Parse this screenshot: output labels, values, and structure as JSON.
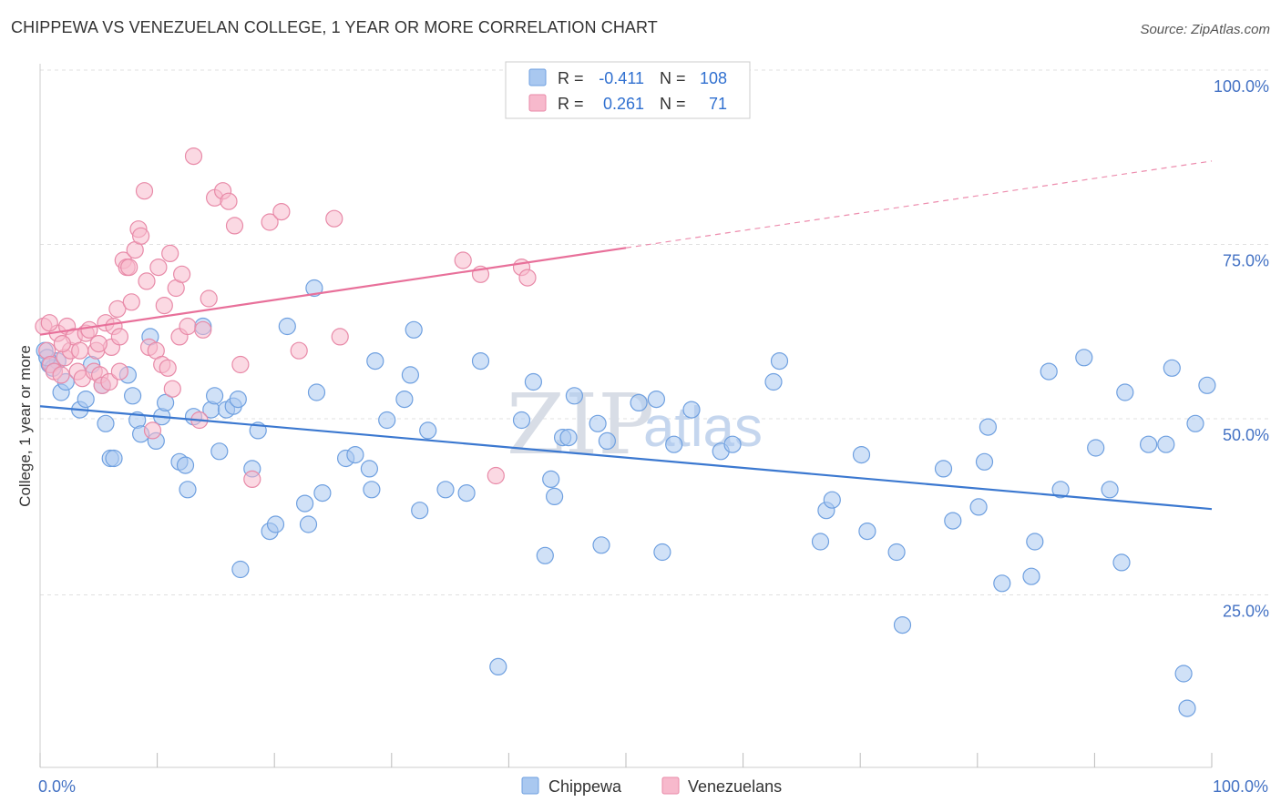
{
  "title": "CHIPPEWA VS VENEZUELAN COLLEGE, 1 YEAR OR MORE CORRELATION CHART",
  "source": "Source: ZipAtlas.com",
  "watermark": {
    "zip": "ZIP",
    "atlas": "atlas"
  },
  "legend": {
    "rows": [
      {
        "r_label": "R =",
        "r_value": "-0.411",
        "n_label": "N =",
        "n_value": "108",
        "color": "#a9c8f0"
      },
      {
        "r_label": "R =",
        "r_value": "0.261",
        "n_label": "N =",
        "n_value": "71",
        "color": "#f7b9cc"
      }
    ]
  },
  "bottom_legend": [
    {
      "label": "Chippewa",
      "color": "#a9c8f0"
    },
    {
      "label": "Venezuelans",
      "color": "#f7b9cc"
    }
  ],
  "chart_data": {
    "type": "scatter",
    "title": "CHIPPEWA VS VENEZUELAN COLLEGE, 1 YEAR OR MORE CORRELATION CHART",
    "xlabel": "",
    "ylabel": "College, 1 year or more",
    "xlim": [
      0,
      100
    ],
    "ylim": [
      0,
      105
    ],
    "x_ticks": [
      "0.0%",
      "100.0%"
    ],
    "y_ticks": [
      {
        "value": 25,
        "label": "25.0%"
      },
      {
        "value": 50,
        "label": "50.0%"
      },
      {
        "value": 75,
        "label": "75.0%"
      },
      {
        "value": 100,
        "label": "100.0%"
      }
    ],
    "grid": true,
    "legend_placement": "top-center",
    "series": [
      {
        "name": "Chippewa",
        "color": "#6fa0e0",
        "fill": "#a9c8f0",
        "trend": {
          "x0": 0,
          "y0": 52,
          "x1": 100,
          "y1": 37.2,
          "dashed_from": null
        },
        "points": [
          [
            0.4,
            60
          ],
          [
            0.8,
            58
          ],
          [
            1.5,
            58.5
          ],
          [
            1.8,
            54
          ],
          [
            2.2,
            55.5
          ],
          [
            3.4,
            51.5
          ],
          [
            3.9,
            53
          ],
          [
            4.4,
            58
          ],
          [
            5.3,
            55
          ],
          [
            5.6,
            49.5
          ],
          [
            6,
            44.5
          ],
          [
            6.3,
            44.5
          ],
          [
            7.5,
            56.5
          ],
          [
            7.9,
            53.5
          ],
          [
            8.3,
            50
          ],
          [
            8.6,
            48
          ],
          [
            9.4,
            62
          ],
          [
            9.9,
            47
          ],
          [
            10.4,
            50.5
          ],
          [
            10.7,
            52.5
          ],
          [
            11.9,
            44
          ],
          [
            12.4,
            43.5
          ],
          [
            12.6,
            40
          ],
          [
            13.1,
            50.5
          ],
          [
            13.9,
            63.5
          ],
          [
            14.6,
            51.5
          ],
          [
            14.9,
            53.5
          ],
          [
            15.3,
            45.5
          ],
          [
            15.9,
            51.5
          ],
          [
            16.5,
            52
          ],
          [
            16.9,
            53
          ],
          [
            17.1,
            28.5
          ],
          [
            18.1,
            43
          ],
          [
            18.6,
            48.5
          ],
          [
            19.6,
            34
          ],
          [
            20.1,
            35
          ],
          [
            21.1,
            63.5
          ],
          [
            22.6,
            38
          ],
          [
            22.9,
            35
          ],
          [
            23.4,
            69
          ],
          [
            23.6,
            54
          ],
          [
            24.1,
            39.5
          ],
          [
            26.1,
            44.5
          ],
          [
            26.9,
            45
          ],
          [
            28.1,
            43
          ],
          [
            28.3,
            40
          ],
          [
            28.6,
            58.5
          ],
          [
            29.6,
            50
          ],
          [
            31.1,
            53
          ],
          [
            31.6,
            56.5
          ],
          [
            31.9,
            63
          ],
          [
            32.4,
            37
          ],
          [
            33.1,
            48.5
          ],
          [
            34.6,
            40
          ],
          [
            36.4,
            39.5
          ],
          [
            37.6,
            58.5
          ],
          [
            39.1,
            14.5
          ],
          [
            41.1,
            50
          ],
          [
            42.1,
            55.5
          ],
          [
            43.1,
            30.5
          ],
          [
            43.6,
            41.5
          ],
          [
            43.9,
            39
          ],
          [
            44.6,
            47.5
          ],
          [
            45.1,
            47.5
          ],
          [
            45.6,
            53.5
          ],
          [
            47.6,
            49.5
          ],
          [
            47.9,
            32
          ],
          [
            48.4,
            47
          ],
          [
            51.1,
            52.5
          ],
          [
            52.6,
            53
          ],
          [
            53.1,
            31
          ],
          [
            54.1,
            46.5
          ],
          [
            55.6,
            51.5
          ],
          [
            58.1,
            45.5
          ],
          [
            59.1,
            46.5
          ],
          [
            62.6,
            55.5
          ],
          [
            63.1,
            58.5
          ],
          [
            66.6,
            32.5
          ],
          [
            67.1,
            37
          ],
          [
            67.6,
            38.5
          ],
          [
            70.1,
            45
          ],
          [
            70.6,
            34
          ],
          [
            73.1,
            31
          ],
          [
            73.6,
            20.5
          ],
          [
            77.1,
            43
          ],
          [
            77.9,
            35.5
          ],
          [
            80.1,
            37.5
          ],
          [
            80.6,
            44
          ],
          [
            80.9,
            49
          ],
          [
            82.1,
            26.5
          ],
          [
            84.6,
            27.5
          ],
          [
            84.9,
            32.5
          ],
          [
            86.1,
            57
          ],
          [
            87.1,
            40
          ],
          [
            89.1,
            59
          ],
          [
            90.1,
            46
          ],
          [
            91.3,
            40
          ],
          [
            92.3,
            29.5
          ],
          [
            92.6,
            54
          ],
          [
            94.6,
            46.5
          ],
          [
            96.1,
            46.5
          ],
          [
            96.6,
            57.5
          ],
          [
            97.6,
            13.5
          ],
          [
            97.9,
            8.5
          ],
          [
            98.6,
            49.5
          ],
          [
            99.6,
            55
          ],
          [
            1.1,
            57.5
          ],
          [
            0.6,
            59
          ]
        ]
      },
      {
        "name": "Venezuelans",
        "color": "#e88aa8",
        "fill": "#f7b9cc",
        "trend": {
          "x0": 0,
          "y0": 62.3,
          "x1": 100,
          "y1": 87.3,
          "dashed_from": 50
        },
        "points": [
          [
            0.3,
            63.5
          ],
          [
            0.6,
            60
          ],
          [
            0.9,
            58
          ],
          [
            1.2,
            57
          ],
          [
            1.5,
            62.5
          ],
          [
            1.8,
            56.5
          ],
          [
            2.1,
            59
          ],
          [
            2.3,
            63.5
          ],
          [
            2.6,
            60
          ],
          [
            2.9,
            62
          ],
          [
            3.2,
            57
          ],
          [
            3.6,
            56
          ],
          [
            3.9,
            62.5
          ],
          [
            4.2,
            63
          ],
          [
            4.6,
            57
          ],
          [
            4.8,
            60
          ],
          [
            5.1,
            56.5
          ],
          [
            5.3,
            55
          ],
          [
            5.6,
            64
          ],
          [
            5.9,
            55.5
          ],
          [
            6.1,
            60.5
          ],
          [
            6.3,
            63.5
          ],
          [
            6.6,
            66
          ],
          [
            6.8,
            62
          ],
          [
            7.1,
            73
          ],
          [
            7.4,
            72
          ],
          [
            7.6,
            72
          ],
          [
            7.8,
            67
          ],
          [
            8.1,
            74.5
          ],
          [
            8.4,
            77.5
          ],
          [
            8.6,
            76.5
          ],
          [
            8.9,
            83
          ],
          [
            9.1,
            70
          ],
          [
            9.3,
            60.5
          ],
          [
            9.6,
            48.5
          ],
          [
            9.9,
            60
          ],
          [
            10.1,
            72
          ],
          [
            10.4,
            58
          ],
          [
            10.6,
            66.5
          ],
          [
            10.9,
            57.5
          ],
          [
            11.1,
            74
          ],
          [
            11.3,
            54.5
          ],
          [
            11.6,
            69
          ],
          [
            11.9,
            62
          ],
          [
            12.1,
            71
          ],
          [
            12.6,
            63.5
          ],
          [
            13.1,
            88
          ],
          [
            13.6,
            50
          ],
          [
            13.9,
            63
          ],
          [
            14.4,
            67.5
          ],
          [
            14.9,
            82
          ],
          [
            15.6,
            83
          ],
          [
            16.1,
            81.5
          ],
          [
            16.6,
            78
          ],
          [
            17.1,
            58
          ],
          [
            18.1,
            41.5
          ],
          [
            19.6,
            78.5
          ],
          [
            20.6,
            80
          ],
          [
            22.1,
            60
          ],
          [
            25.1,
            79
          ],
          [
            25.6,
            62
          ],
          [
            36.1,
            73
          ],
          [
            37.6,
            71
          ],
          [
            38.9,
            42
          ],
          [
            41.1,
            72
          ],
          [
            41.6,
            70.5
          ],
          [
            0.8,
            64
          ],
          [
            1.9,
            61
          ],
          [
            3.4,
            60
          ],
          [
            5.0,
            61
          ],
          [
            6.8,
            57
          ]
        ]
      }
    ]
  }
}
